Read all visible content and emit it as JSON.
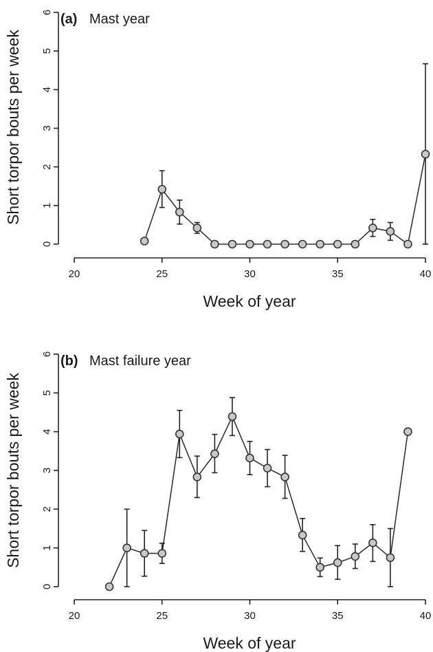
{
  "chart_data": [
    {
      "type": "line",
      "panel": "(a)",
      "title": "Mast year",
      "xlabel": "Week of year",
      "ylabel": "Short torpor bouts per week",
      "xlim": [
        20,
        40
      ],
      "ylim": [
        0,
        6
      ],
      "xticks": [
        20,
        25,
        30,
        35,
        40
      ],
      "yticks": [
        0,
        1,
        2,
        3,
        4,
        5,
        6
      ],
      "grid": false,
      "points": [
        {
          "x": 24,
          "y": 0.08,
          "lo": null,
          "hi": null
        },
        {
          "x": 25,
          "y": 1.42,
          "lo": 0.95,
          "hi": 1.9
        },
        {
          "x": 26,
          "y": 0.83,
          "lo": 0.52,
          "hi": 1.14
        },
        {
          "x": 27,
          "y": 0.42,
          "lo": 0.28,
          "hi": 0.56
        },
        {
          "x": 28,
          "y": 0,
          "lo": null,
          "hi": null
        },
        {
          "x": 29,
          "y": 0,
          "lo": null,
          "hi": null
        },
        {
          "x": 30,
          "y": 0,
          "lo": null,
          "hi": null
        },
        {
          "x": 31,
          "y": 0,
          "lo": null,
          "hi": null
        },
        {
          "x": 32,
          "y": 0,
          "lo": null,
          "hi": null
        },
        {
          "x": 33,
          "y": 0,
          "lo": null,
          "hi": null
        },
        {
          "x": 34,
          "y": 0,
          "lo": null,
          "hi": null
        },
        {
          "x": 35,
          "y": 0,
          "lo": null,
          "hi": null
        },
        {
          "x": 36,
          "y": 0,
          "lo": null,
          "hi": null
        },
        {
          "x": 37,
          "y": 0.42,
          "lo": 0.2,
          "hi": 0.64
        },
        {
          "x": 38,
          "y": 0.33,
          "lo": 0.1,
          "hi": 0.56
        },
        {
          "x": 39,
          "y": 0,
          "lo": null,
          "hi": null
        },
        {
          "x": 40,
          "y": 2.33,
          "lo": 0,
          "hi": 4.67
        }
      ]
    },
    {
      "type": "line",
      "panel": "(b)",
      "title": "Mast failure year",
      "xlabel": "Week of year",
      "ylabel": "Short torpor bouts per week",
      "xlim": [
        20,
        40
      ],
      "ylim": [
        0,
        6
      ],
      "xticks": [
        20,
        25,
        30,
        35,
        40
      ],
      "yticks": [
        0,
        1,
        2,
        3,
        4,
        5,
        6
      ],
      "grid": false,
      "points": [
        {
          "x": 22,
          "y": 0,
          "lo": null,
          "hi": null
        },
        {
          "x": 23,
          "y": 1.0,
          "lo": 0,
          "hi": 2.0
        },
        {
          "x": 24,
          "y": 0.86,
          "lo": 0.27,
          "hi": 1.45
        },
        {
          "x": 25,
          "y": 0.86,
          "lo": 0.6,
          "hi": 1.12
        },
        {
          "x": 26,
          "y": 3.94,
          "lo": 3.33,
          "hi": 4.55
        },
        {
          "x": 27,
          "y": 2.83,
          "lo": 2.3,
          "hi": 3.37
        },
        {
          "x": 28,
          "y": 3.43,
          "lo": 2.94,
          "hi": 3.93
        },
        {
          "x": 29,
          "y": 4.39,
          "lo": 3.9,
          "hi": 4.88
        },
        {
          "x": 30,
          "y": 3.32,
          "lo": 2.89,
          "hi": 3.75
        },
        {
          "x": 31,
          "y": 3.06,
          "lo": 2.58,
          "hi": 3.54
        },
        {
          "x": 32,
          "y": 2.83,
          "lo": 2.28,
          "hi": 3.39
        },
        {
          "x": 33,
          "y": 1.33,
          "lo": 0.91,
          "hi": 1.76
        },
        {
          "x": 34,
          "y": 0.5,
          "lo": 0.26,
          "hi": 0.74
        },
        {
          "x": 35,
          "y": 0.62,
          "lo": 0.19,
          "hi": 1.06
        },
        {
          "x": 36,
          "y": 0.78,
          "lo": 0.47,
          "hi": 1.1
        },
        {
          "x": 37,
          "y": 1.13,
          "lo": 0.65,
          "hi": 1.6
        },
        {
          "x": 38,
          "y": 0.75,
          "lo": 0,
          "hi": 1.5
        },
        {
          "x": 39,
          "y": 4.0,
          "lo": null,
          "hi": null
        }
      ]
    }
  ]
}
